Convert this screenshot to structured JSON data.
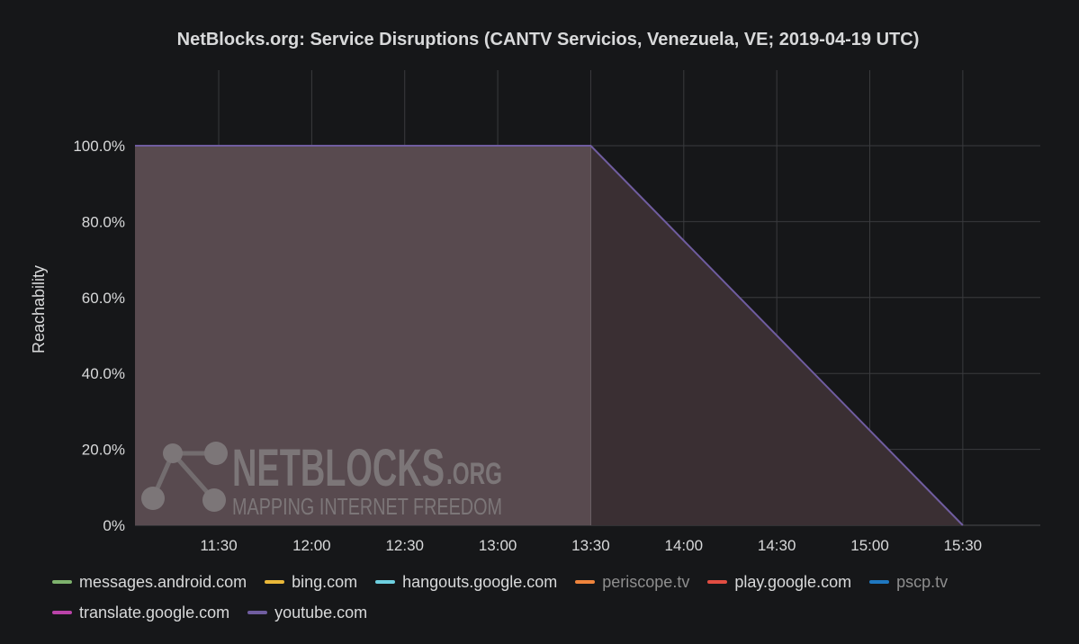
{
  "chart_data": {
    "type": "area",
    "title": "NetBlocks.org: Service Disruptions (CANTV Servicios, Venezuela, VE; 2019-04-19 UTC)",
    "ylabel": "Reachability",
    "xlabel": "",
    "x_ticks": [
      "11:30",
      "12:00",
      "12:30",
      "13:00",
      "13:30",
      "14:00",
      "14:30",
      "15:00",
      "15:30"
    ],
    "y_ticks": [
      "0%",
      "20.0%",
      "40.0%",
      "60.0%",
      "80.0%",
      "100.0%"
    ],
    "ylim": [
      0,
      100
    ],
    "xlim": [
      "11:03",
      "15:55"
    ],
    "grid": true,
    "legend_position": "bottom",
    "series": [
      {
        "name": "youtube.com",
        "color": "#705da0",
        "points": [
          {
            "x": "11:03",
            "y": 100
          },
          {
            "x": "13:30",
            "y": 100
          },
          {
            "x": "15:30",
            "y": 0
          }
        ]
      }
    ],
    "legend": [
      {
        "label": "messages.android.com",
        "color": "#7eb26d",
        "dim": false
      },
      {
        "label": "bing.com",
        "color": "#eab839",
        "dim": false
      },
      {
        "label": "hangouts.google.com",
        "color": "#6ed0e0",
        "dim": false
      },
      {
        "label": "periscope.tv",
        "color": "#ef843c",
        "dim": true
      },
      {
        "label": "play.google.com",
        "color": "#e24d42",
        "dim": false
      },
      {
        "label": "pscp.tv",
        "color": "#1f78c1",
        "dim": true
      },
      {
        "label": "translate.google.com",
        "color": "#ba43a9",
        "dim": false
      },
      {
        "label": "youtube.com",
        "color": "#705da0",
        "dim": false
      }
    ]
  },
  "watermark": {
    "brand": "NETBLOCKS",
    "suffix": ".ORG",
    "tagline": "MAPPING INTERNET FREEDOM"
  }
}
